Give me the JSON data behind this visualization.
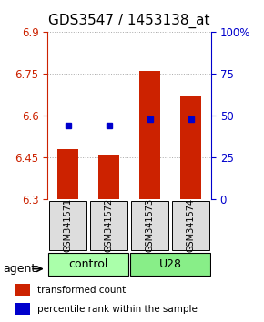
{
  "title": "GDS3547 / 1453138_at",
  "samples": [
    "GSM341571",
    "GSM341572",
    "GSM341573",
    "GSM341574"
  ],
  "bar_values": [
    6.48,
    6.46,
    6.76,
    6.67
  ],
  "percentile_values": [
    6.565,
    6.565,
    6.59,
    6.59
  ],
  "baseline": 6.3,
  "ylim": [
    6.3,
    6.9
  ],
  "yticks_left": [
    6.3,
    6.45,
    6.6,
    6.75,
    6.9
  ],
  "yticks_right": [
    0,
    25,
    50,
    75,
    100
  ],
  "yright_lim": [
    0,
    100
  ],
  "bar_color": "#cc2200",
  "percentile_color": "#0000cc",
  "groups": [
    {
      "label": "control",
      "indices": [
        0,
        1
      ],
      "color": "#aaffaa"
    },
    {
      "label": "U28",
      "indices": [
        2,
        3
      ],
      "color": "#88ee88"
    }
  ],
  "legend_items": [
    {
      "color": "#cc2200",
      "label": "transformed count"
    },
    {
      "color": "#0000cc",
      "label": "percentile rank within the sample"
    }
  ],
  "agent_label": "agent",
  "background_color": "#ffffff",
  "grid_color": "#aaaaaa",
  "title_fontsize": 11,
  "tick_fontsize": 8.5,
  "label_fontsize": 9
}
